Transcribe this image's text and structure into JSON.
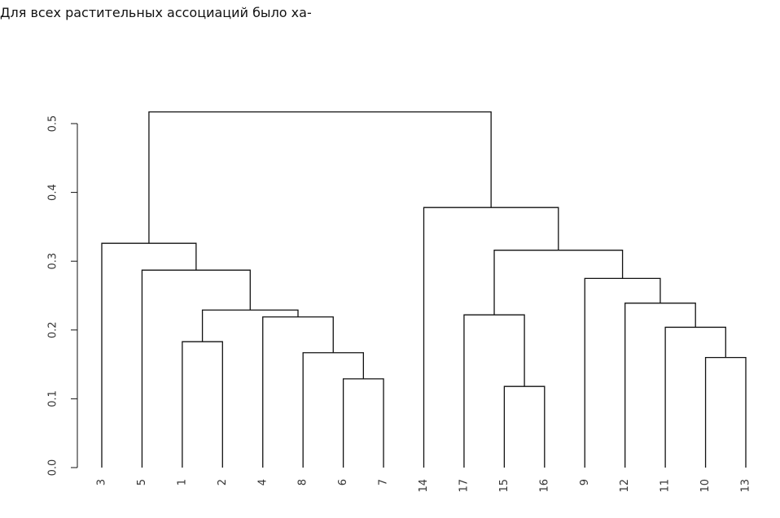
{
  "header_text": "Для всех растительных ассоциаций было ха-",
  "chart_data": {
    "type": "dendrogram",
    "leaves": [
      3,
      5,
      1,
      2,
      4,
      8,
      6,
      7,
      14,
      17,
      15,
      16,
      9,
      12,
      11,
      10,
      13
    ],
    "merges": [
      [
        -6,
        -7
      ],
      [
        -8,
        1
      ],
      [
        -1,
        -2
      ],
      [
        -4,
        2
      ],
      [
        3,
        4
      ],
      [
        -5,
        5
      ],
      [
        -3,
        6
      ],
      [
        -15,
        -16
      ],
      [
        -17,
        8
      ],
      [
        -10,
        -13
      ],
      [
        -11,
        10
      ],
      [
        -12,
        11
      ],
      [
        -9,
        12
      ],
      [
        9,
        13
      ],
      [
        -14,
        14
      ],
      [
        7,
        15
      ]
    ],
    "heights": [
      0.129,
      0.167,
      0.183,
      0.219,
      0.229,
      0.287,
      0.326,
      0.118,
      0.222,
      0.16,
      0.204,
      0.239,
      0.275,
      0.316,
      0.378,
      0.517
    ],
    "ylim": [
      0,
      0.5
    ],
    "yticks": [
      {
        "value": 0,
        "label": "0.0"
      },
      0.1,
      0.2,
      0.3,
      0.4,
      0.5
    ]
  }
}
